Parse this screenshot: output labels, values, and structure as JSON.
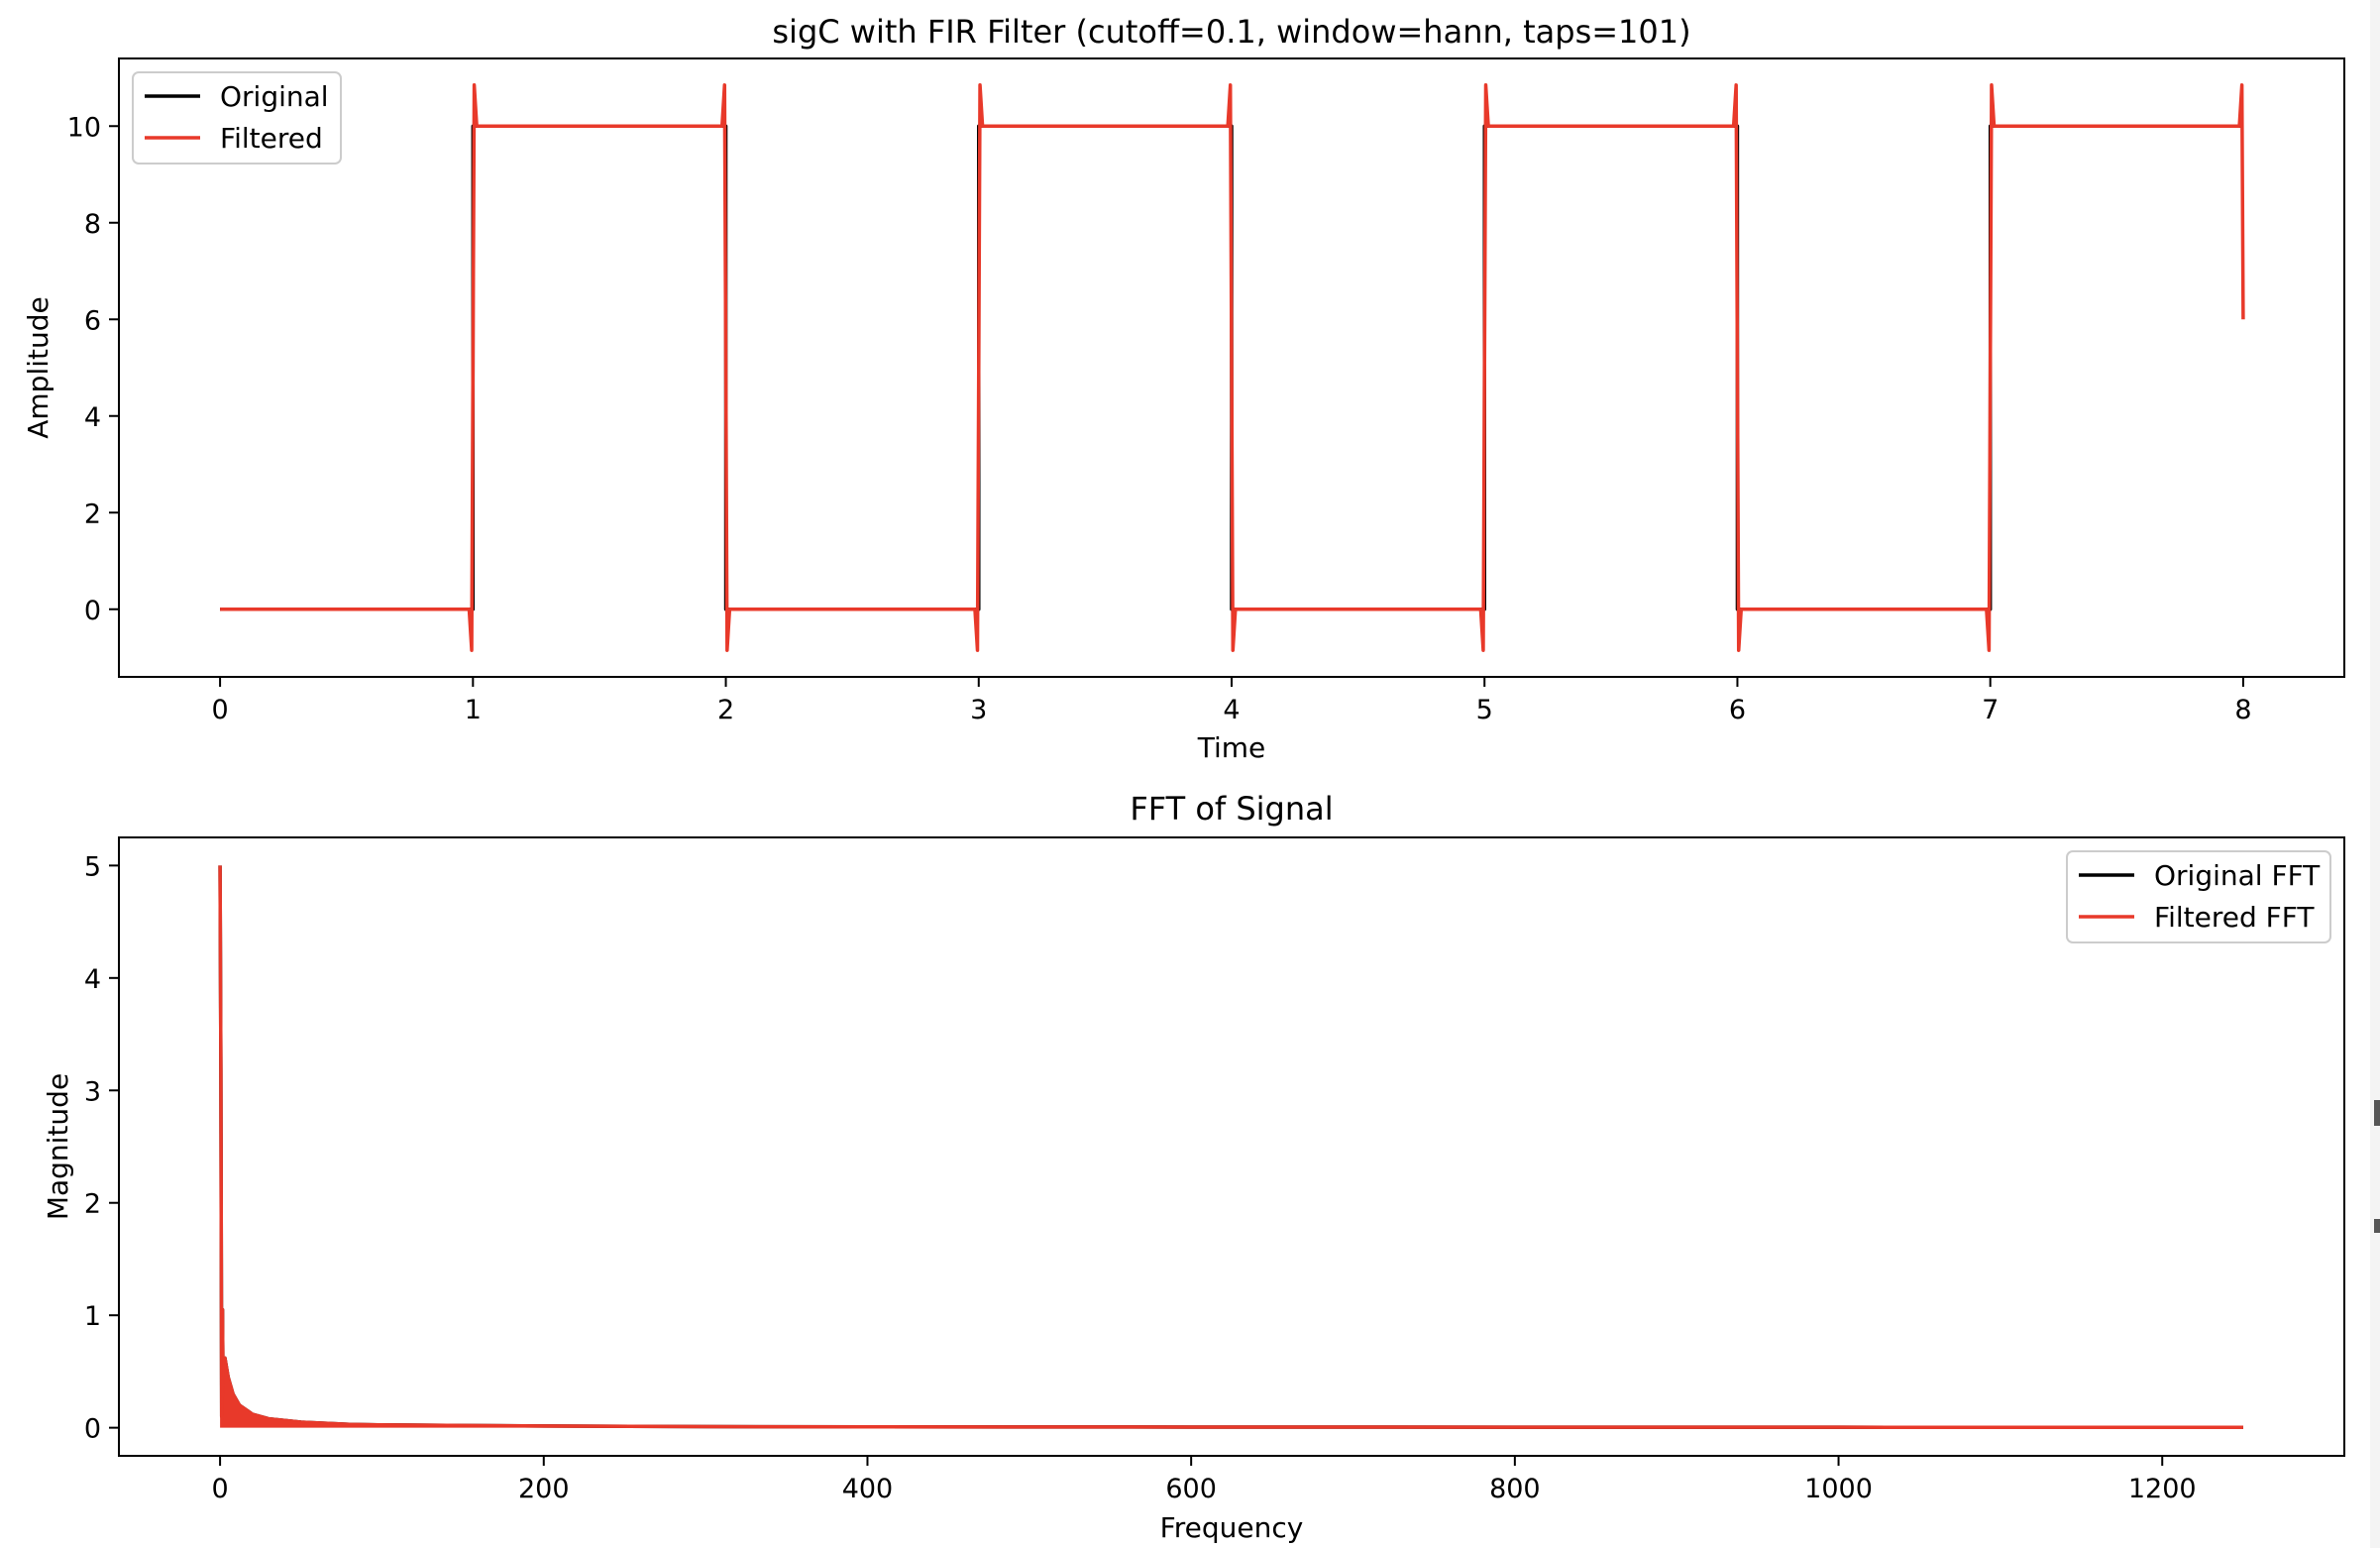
{
  "figure": {
    "background": "#ffffff",
    "colors": {
      "original": "#000000",
      "filtered": "#e8392a",
      "axes": "#000000"
    }
  },
  "chart_data": [
    {
      "type": "line",
      "title": "sigC with FIR Filter (cutoff=0.1, window=hann, taps=101)",
      "xlabel": "Time",
      "ylabel": "Amplitude",
      "xlim": [
        -0.4,
        8.4
      ],
      "ylim": [
        -1.4,
        11.4
      ],
      "xticks": [
        0,
        1,
        2,
        3,
        4,
        5,
        6,
        7,
        8
      ],
      "yticks": [
        0,
        2,
        4,
        6,
        8,
        10
      ],
      "legend": {
        "position": "upper left",
        "entries": [
          "Original",
          "Filtered"
        ]
      },
      "grid": false,
      "series": [
        {
          "name": "Original",
          "color": "#000000",
          "x": [
            0,
            1,
            1,
            2,
            2,
            3,
            3,
            4,
            4,
            5,
            5,
            6,
            6,
            7,
            7,
            8
          ],
          "y": [
            0,
            0,
            10,
            10,
            0,
            0,
            10,
            10,
            0,
            0,
            10,
            10,
            0,
            0,
            10,
            10
          ]
        },
        {
          "name": "Filtered",
          "color": "#e8392a",
          "x": [
            0,
            0.985,
            0.995,
            1.0,
            1.005,
            1.015,
            1.985,
            1.995,
            2.0,
            2.005,
            2.015,
            2.985,
            2.995,
            3.0,
            3.005,
            3.015,
            3.985,
            3.995,
            4.0,
            4.005,
            4.015,
            4.985,
            4.995,
            5.0,
            5.005,
            5.015,
            5.985,
            5.995,
            6.0,
            6.005,
            6.015,
            6.985,
            6.995,
            7.0,
            7.005,
            7.015,
            7.985,
            7.995,
            8.0
          ],
          "y": [
            0,
            0,
            -0.85,
            5,
            10.85,
            10,
            10,
            10.85,
            5,
            -0.85,
            0,
            0,
            -0.85,
            5,
            10.85,
            10,
            10,
            10.85,
            5,
            -0.85,
            0,
            0,
            -0.85,
            5,
            10.85,
            10,
            10,
            10.85,
            5,
            -0.85,
            0,
            0,
            -0.85,
            5,
            10.85,
            10,
            10,
            10.85,
            6
          ]
        }
      ]
    },
    {
      "type": "line",
      "title": "FFT of Signal",
      "xlabel": "Frequency",
      "ylabel": "Magnitude",
      "xlim": [
        -62.5,
        1312.5
      ],
      "ylim": [
        -0.25,
        5.25
      ],
      "xticks": [
        0,
        200,
        400,
        600,
        800,
        1000,
        1200
      ],
      "yticks": [
        0,
        1,
        2,
        3,
        4,
        5
      ],
      "legend": {
        "position": "upper right",
        "entries": [
          "Original FFT",
          "Filtered FFT"
        ]
      },
      "grid": false,
      "series": [
        {
          "name": "Original FFT",
          "color": "#000000",
          "x": [
            0,
            0.5,
            1,
            1.5,
            2,
            3,
            5,
            8,
            12,
            20,
            30,
            50,
            80,
            100,
            150,
            200,
            300,
            400,
            600,
            800,
            1000,
            1250
          ],
          "y": [
            5.0,
            3.2,
            0.1,
            1.05,
            0.05,
            0.62,
            0.45,
            0.3,
            0.2,
            0.12,
            0.08,
            0.05,
            0.03,
            0.025,
            0.02,
            0.015,
            0.01,
            0.008,
            0.006,
            0.005,
            0.004,
            0.003
          ]
        },
        {
          "name": "Filtered FFT",
          "color": "#e8392a",
          "x": [
            0,
            0.5,
            1,
            1.5,
            2,
            3,
            5,
            8,
            12,
            20,
            30,
            50,
            80,
            100,
            150,
            200,
            300,
            400,
            600,
            800,
            1000,
            1250
          ],
          "y": [
            5.0,
            3.2,
            0.1,
            1.05,
            0.05,
            0.62,
            0.45,
            0.3,
            0.2,
            0.12,
            0.08,
            0.05,
            0.03,
            0.025,
            0.02,
            0.015,
            0.01,
            0.008,
            0.006,
            0.005,
            0.004,
            0.003
          ]
        }
      ]
    }
  ]
}
